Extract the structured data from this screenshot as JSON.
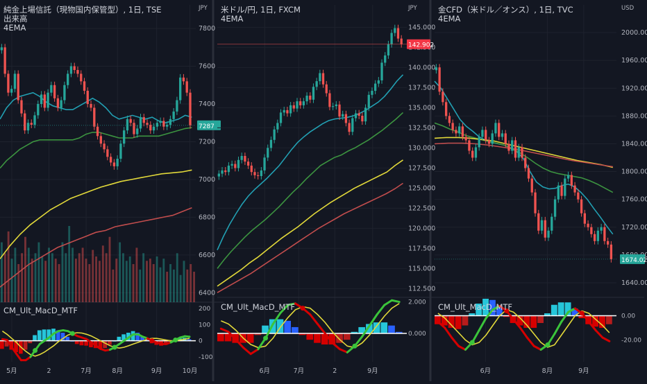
{
  "chart_data": [
    {
      "type": "candlestick",
      "title": "純金上場信託（現物国内保管型）, 1日, TSE",
      "subtitle_lines": [
        "出来高",
        "4EMA"
      ],
      "currency": "JPY",
      "y_ticks": [
        "7800",
        "7600",
        "7400",
        "7200",
        "7000",
        "6800",
        "6600",
        "6400"
      ],
      "ylim": [
        6350,
        7870
      ],
      "x_ticks": [
        "5月",
        "2",
        "7月",
        "8月",
        "9月",
        "10月"
      ],
      "last_price": "7287",
      "closes": [
        7700,
        7560,
        7460,
        7480,
        7560,
        7420,
        7350,
        7260,
        7300,
        7290,
        7340,
        7400,
        7450,
        7380,
        7460,
        7500,
        7430,
        7380,
        7420,
        7500,
        7560,
        7600,
        7580,
        7560,
        7520,
        7470,
        7400,
        7380,
        7280,
        7230,
        7190,
        7160,
        7120,
        7090,
        7070,
        7110,
        7190,
        7260,
        7320,
        7300,
        7240,
        7270,
        7330,
        7300,
        7290,
        7260,
        7280,
        7300,
        7310,
        7280,
        7290,
        7320,
        7360,
        7420,
        7540,
        7520,
        7460,
        7287
      ],
      "ema_colors": [
        "#22a0b3",
        "#3c9440",
        "#e2d93a",
        "#c24d4d"
      ],
      "ema_values": [
        [
          7320,
          7380,
          7420,
          7440,
          7450,
          7460,
          7440,
          7410,
          7390,
          7380,
          7370,
          7370,
          7390,
          7410,
          7430,
          7410,
          7380,
          7340,
          7320,
          7330,
          7340,
          7330,
          7320,
          7330,
          7310,
          7300,
          7310,
          7320,
          7340,
          7330
        ],
        [
          7060,
          7100,
          7130,
          7160,
          7180,
          7200,
          7210,
          7210,
          7210,
          7210,
          7210,
          7210,
          7220,
          7240,
          7250,
          7250,
          7240,
          7230,
          7220,
          7220,
          7220,
          7230,
          7230,
          7230,
          7230,
          7240,
          7250,
          7260,
          7270,
          7275
        ],
        [
          6580,
          6650,
          6710,
          6760,
          6800,
          6840,
          6870,
          6900,
          6920,
          6940,
          6960,
          6975,
          6990,
          7000,
          7010,
          7020,
          7030,
          7035,
          7040,
          7050
        ],
        [
          6430,
          6470,
          6510,
          6550,
          6580,
          6610,
          6640,
          6660,
          6680,
          6700,
          6720,
          6730,
          6750,
          6760,
          6770,
          6780,
          6790,
          6800,
          6810,
          6830,
          6850
        ]
      ],
      "volume": [
        55,
        45,
        65,
        40,
        50,
        35,
        45,
        60,
        50,
        40,
        45,
        55,
        42,
        38,
        50,
        45,
        40,
        35,
        55,
        45,
        70,
        50,
        40,
        45,
        50,
        40,
        35,
        48,
        42,
        38,
        52,
        45,
        60,
        30,
        40,
        55,
        45,
        38,
        42,
        35,
        50,
        30,
        45,
        38,
        40,
        35,
        42,
        32,
        40,
        28,
        35,
        30,
        45,
        25,
        38,
        30,
        35,
        28
      ],
      "indicator": {
        "name": "CM_Ult_MacD_MTF",
        "y_ticks": [
          "200",
          "100",
          "0",
          "-100"
        ],
        "ylim": [
          -130,
          230
        ],
        "macd": [
          10,
          5,
          -40,
          -80,
          -120,
          -120,
          -100,
          -60,
          -20,
          0,
          20,
          45,
          60,
          65,
          60,
          45,
          30,
          20,
          10,
          -10,
          -30,
          -50,
          -60,
          -55,
          -40,
          -20,
          0,
          20,
          40,
          40,
          25,
          15,
          0,
          -10,
          -20,
          -20,
          -10,
          5,
          20,
          28,
          25
        ],
        "signal": [
          60,
          40,
          15,
          -10,
          -40,
          -65,
          -85,
          -95,
          -85,
          -70,
          -50,
          -30,
          -5,
          15,
          35,
          45,
          50,
          48,
          40,
          30,
          15,
          0,
          -15,
          -30,
          -40,
          -45,
          -40,
          -30,
          -20,
          -10,
          0,
          10,
          15,
          15,
          10,
          5,
          0,
          0,
          5,
          10,
          15
        ]
      }
    },
    {
      "type": "candlestick",
      "title": "米ドル/円, 1日, FXCM",
      "subtitle_lines": [
        "4EMA"
      ],
      "currency": "JPY",
      "y_ticks": [
        "145.000",
        "142.500",
        "140.000",
        "137.500",
        "135.000",
        "132.500",
        "130.000",
        "127.500",
        "125.000",
        "122.500",
        "120.000",
        "117.500",
        "115.000",
        "112.500"
      ],
      "ylim": [
        111.5,
        146.5
      ],
      "x_ticks": [
        "6月",
        "7月",
        "2",
        "9月"
      ],
      "last_price": "142.902",
      "closes": [
        126.8,
        127.2,
        127.0,
        127.8,
        128.0,
        127.5,
        128.5,
        129.0,
        128.3,
        127.8,
        127.0,
        126.6,
        126.5,
        127.2,
        128.8,
        130.0,
        131.0,
        132.3,
        133.1,
        134.4,
        134.7,
        134.3,
        135.3,
        134.9,
        135.8,
        135.3,
        135.8,
        136.5,
        136.0,
        137.6,
        138.3,
        139.3,
        137.9,
        136.8,
        135.1,
        135.2,
        135.4,
        133.9,
        134.2,
        133.1,
        132.0,
        133.7,
        134.3,
        134.0,
        133.3,
        135.0,
        136.6,
        137.1,
        138.0,
        138.4,
        140.6,
        141.5,
        142.9,
        144.3,
        144.9,
        143.6,
        142.9
      ],
      "ema_colors": [
        "#22a0b3",
        "#3c9440",
        "#e2d93a",
        "#c24d4d"
      ],
      "ema_values": [
        [
          117.3,
          119.0,
          120.5,
          121.8,
          123.0,
          124.0,
          124.8,
          125.5,
          126.2,
          127.0,
          127.8,
          128.8,
          129.8,
          130.7,
          131.4,
          132.0,
          132.5,
          133.0,
          133.4,
          133.6,
          133.7,
          133.8,
          134.0,
          134.3,
          134.7,
          135.2,
          135.7,
          136.4,
          137.3,
          138.3,
          139.1
        ],
        [
          115.0,
          116.1,
          117.1,
          118.0,
          118.9,
          119.7,
          120.4,
          121.1,
          121.9,
          122.7,
          123.6,
          124.5,
          125.3,
          126.2,
          127.0,
          127.8,
          128.3,
          128.8,
          129.1,
          129.6,
          130.0,
          130.5,
          131.0,
          131.6,
          132.2,
          132.9,
          133.6,
          134.4
        ],
        [
          112.8,
          113.5,
          114.2,
          114.9,
          115.7,
          116.4,
          117.2,
          118.0,
          118.8,
          119.5,
          120.2,
          121.0,
          121.8,
          122.5,
          123.2,
          123.8,
          124.4,
          125.0,
          125.5,
          126.0,
          126.5,
          127.0,
          127.8,
          128.5
        ],
        [
          112.0,
          112.6,
          113.2,
          113.8,
          114.4,
          115.1,
          115.8,
          116.5,
          117.2,
          117.9,
          118.6,
          119.3,
          120.0,
          120.6,
          121.2,
          121.8,
          122.3,
          122.8,
          123.3,
          123.8,
          124.3,
          124.9,
          125.6
        ]
      ],
      "indicator": {
        "name": "CM_Ult_MacD_MTF",
        "y_ticks": [
          "2.000",
          "0.000"
        ],
        "ylim": [
          -1.8,
          2.2
        ],
        "macd": [
          0.3,
          0.1,
          -0.4,
          -0.9,
          -1.3,
          -1.0,
          -0.3,
          0.6,
          1.3,
          1.8,
          1.9,
          1.6,
          1.2,
          0.6,
          0.0,
          -0.6,
          -1.0,
          -1.2,
          -0.8,
          -0.2,
          0.5,
          1.2,
          1.8,
          2.1,
          2.0
        ],
        "signal": [
          0.8,
          0.6,
          0.2,
          -0.3,
          -0.7,
          -0.9,
          -0.8,
          -0.3,
          0.4,
          1.0,
          1.5,
          1.7,
          1.6,
          1.2,
          0.7,
          0.1,
          -0.4,
          -0.8,
          -0.9,
          -0.6,
          -0.1,
          0.5,
          1.1,
          1.6,
          1.9
        ]
      }
    },
    {
      "type": "candlestick",
      "title": "金CFD（米ドル／オンス）, 1日, TVC",
      "subtitle_lines": [
        "4EMA"
      ],
      "currency": "USD",
      "y_ticks": [
        "2000.00",
        "1960.00",
        "1920.00",
        "1880.00",
        "1840.00",
        "1800.00",
        "1760.00",
        "1720.00",
        "1680.00",
        "1640.00"
      ],
      "ylim": [
        1620,
        2025
      ],
      "x_ticks": [
        "6月",
        "8月",
        "9月"
      ],
      "last_price": "1674.02",
      "closes": [
        1950,
        1915,
        1900,
        1880,
        1870,
        1860,
        1855,
        1865,
        1850,
        1845,
        1830,
        1820,
        1835,
        1850,
        1860,
        1845,
        1840,
        1855,
        1870,
        1850,
        1855,
        1840,
        1830,
        1845,
        1820,
        1835,
        1820,
        1805,
        1790,
        1770,
        1740,
        1715,
        1730,
        1705,
        1715,
        1735,
        1760,
        1780,
        1765,
        1790,
        1795,
        1780,
        1770,
        1760,
        1740,
        1725,
        1720,
        1710,
        1700,
        1715,
        1720,
        1700,
        1695,
        1674
      ],
      "ema_colors": [
        "#22a0b3",
        "#3c9440",
        "#e2d93a",
        "#c24d4d"
      ],
      "ema_values": [
        [
          1930,
          1920,
          1905,
          1890,
          1875,
          1865,
          1858,
          1850,
          1845,
          1842,
          1840,
          1838,
          1834,
          1828,
          1818,
          1800,
          1785,
          1778,
          1775,
          1776,
          1780,
          1782,
          1778,
          1770,
          1760,
          1747,
          1735,
          1722,
          1710
        ],
        [
          1870,
          1866,
          1861,
          1857,
          1852,
          1849,
          1846,
          1843,
          1841,
          1838,
          1833,
          1827,
          1820,
          1812,
          1805,
          1800,
          1797,
          1795,
          1793,
          1791,
          1787,
          1782,
          1776,
          1770
        ],
        [
          1848,
          1849,
          1849,
          1848,
          1846,
          1844,
          1840,
          1836,
          1832,
          1828,
          1824,
          1820,
          1816,
          1813,
          1810,
          1806
        ],
        [
          1840,
          1841,
          1841,
          1840,
          1838,
          1835,
          1832,
          1828,
          1824,
          1820,
          1816,
          1813,
          1810,
          1807
        ]
      ],
      "indicator": {
        "name": "CM_Ult_MacD_MTF",
        "y_ticks": [
          "0.00",
          "-20.00"
        ],
        "ylim": [
          -38,
          14
        ],
        "macd": [
          -5,
          -10,
          -18,
          -25,
          -28,
          -22,
          -12,
          -2,
          5,
          8,
          4,
          -3,
          -10,
          -18,
          -25,
          -28,
          -24,
          -15,
          -5,
          3,
          6,
          2,
          -5,
          -12,
          -18,
          -21
        ],
        "signal": [
          2,
          -2,
          -8,
          -14,
          -20,
          -24,
          -22,
          -16,
          -8,
          0,
          5,
          3,
          -2,
          -8,
          -15,
          -22,
          -26,
          -24,
          -16,
          -8,
          0,
          4,
          2,
          -3,
          -8,
          -14
        ]
      }
    }
  ]
}
